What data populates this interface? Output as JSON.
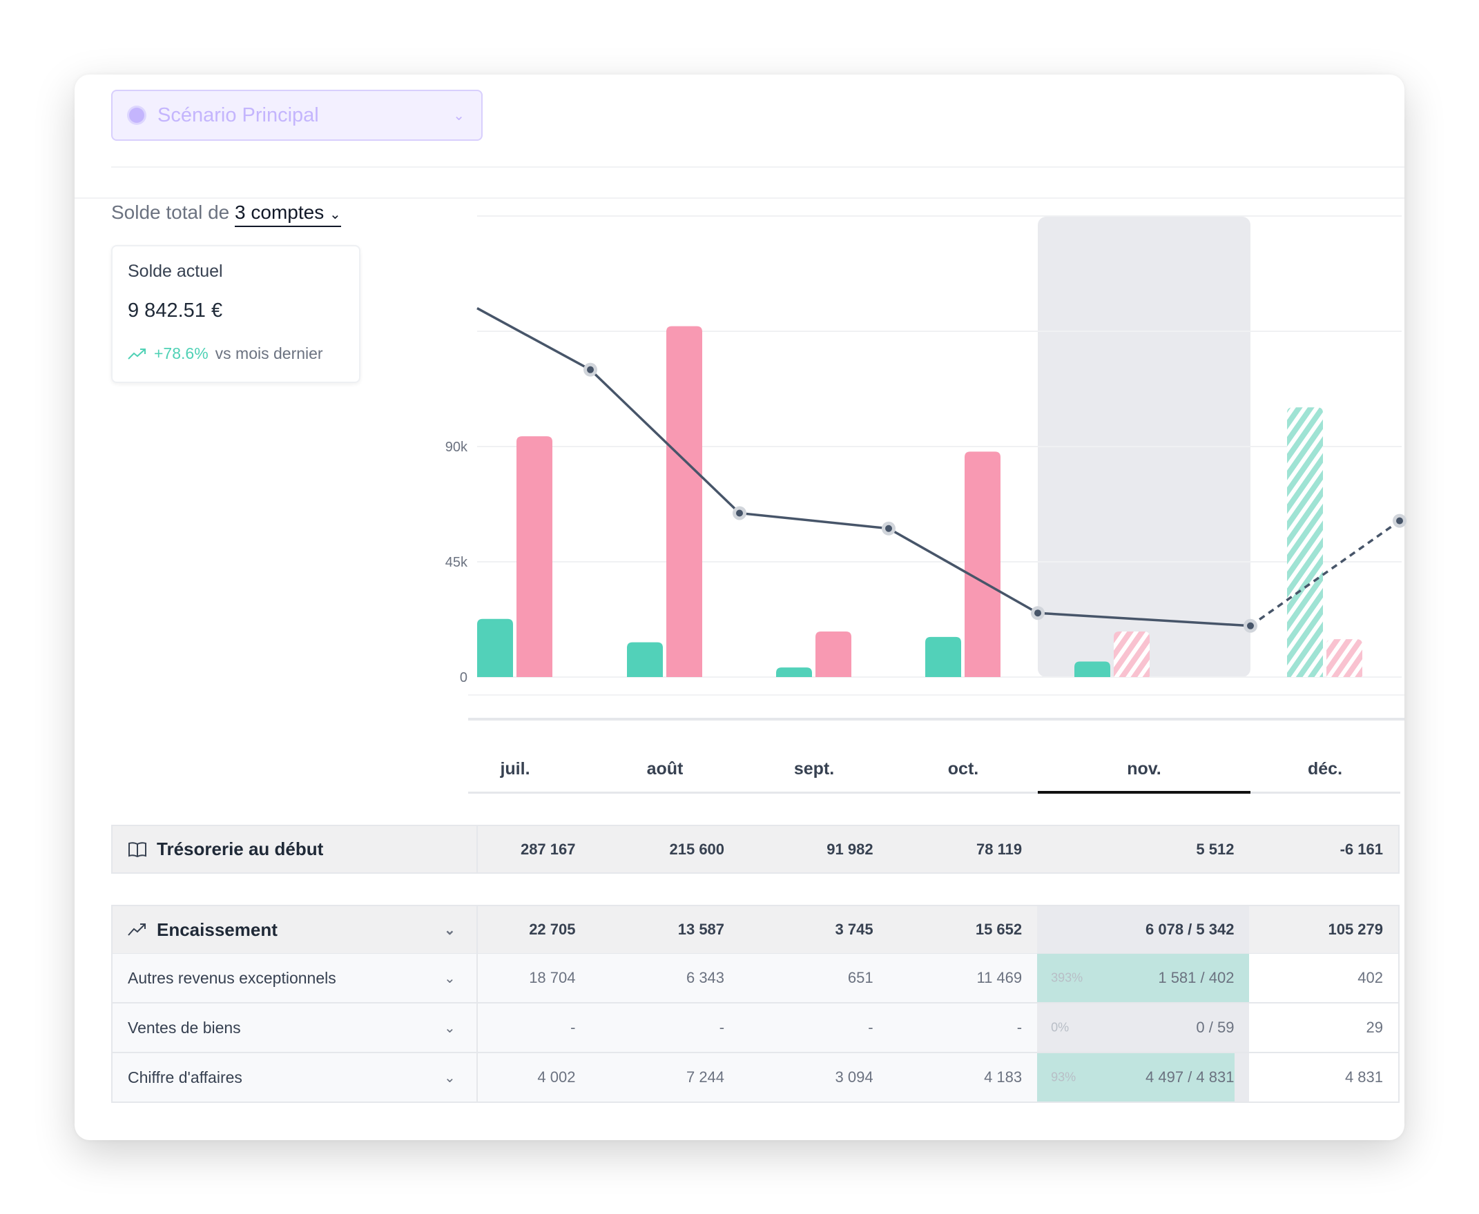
{
  "scenario": {
    "label": "Scénario Principal",
    "icon": "radio-dot-icon"
  },
  "balance": {
    "prefix": "Solde total de",
    "accounts": "3 comptes"
  },
  "current": {
    "title": "Solde actuel",
    "value": "9 842.51 €",
    "change": "+78.6%",
    "change_suffix": "vs mois dernier"
  },
  "colors": {
    "income": "#52d1b9",
    "expense": "#f899b2",
    "line": "#475569",
    "highlight": "#e9eaee",
    "progress": "#c0e4df"
  },
  "months": [
    "juil.",
    "août",
    "sept.",
    "oct.",
    "nov.",
    "déc."
  ],
  "selected_month": "nov.",
  "chart_data": {
    "type": "bar",
    "categories": [
      "juil.",
      "août",
      "sept.",
      "oct.",
      "nov.",
      "déc."
    ],
    "y_ticks": [
      "0",
      "45k",
      "90k"
    ],
    "ylim": [
      0,
      180000
    ],
    "grid": true,
    "series": [
      {
        "kind": "bar",
        "role": "income",
        "values": [
          22705,
          13587,
          3745,
          15652,
          6078,
          105279
        ],
        "forecast": [
          false,
          false,
          false,
          false,
          false,
          true
        ]
      },
      {
        "kind": "bar",
        "role": "expense",
        "values": [
          94000,
          137000,
          17800,
          88000,
          17800,
          14800
        ],
        "forecast": [
          false,
          false,
          false,
          false,
          true,
          true
        ]
      },
      {
        "kind": "line",
        "role": "balance",
        "start": 144000,
        "values": [
          120000,
          64000,
          58000,
          25000,
          20000,
          61000
        ],
        "forecast": [
          false,
          false,
          false,
          false,
          false,
          true
        ]
      }
    ]
  },
  "table": {
    "opening": {
      "label": "Trésorerie au début",
      "icon": "book-icon",
      "values": [
        "287 167",
        "215 600",
        "91 982",
        "78 119",
        "5 512",
        "-6 161"
      ]
    },
    "income": {
      "label": "Encaissement",
      "icon": "trending-up-icon",
      "values": [
        "22 705",
        "13 587",
        "3 745",
        "15 652",
        "6 078 / 5 342",
        "105 279"
      ]
    },
    "rows": [
      {
        "label": "Autres revenus exceptionnels",
        "values": [
          "18 704",
          "6 343",
          "651",
          "11 469",
          "1 581 / 402",
          "402"
        ],
        "nov_pct": "393%",
        "progress": 100
      },
      {
        "label": "Ventes de biens",
        "values": [
          "-",
          "-",
          "-",
          "-",
          "0 / 59",
          "29"
        ],
        "nov_pct": "0%",
        "progress": 0
      },
      {
        "label": "Chiffre d'affaires",
        "values": [
          "4 002",
          "7 244",
          "3 094",
          "4 183",
          "4 497 / 4 831",
          "4 831"
        ],
        "nov_pct": "93%",
        "progress": 93
      }
    ]
  }
}
